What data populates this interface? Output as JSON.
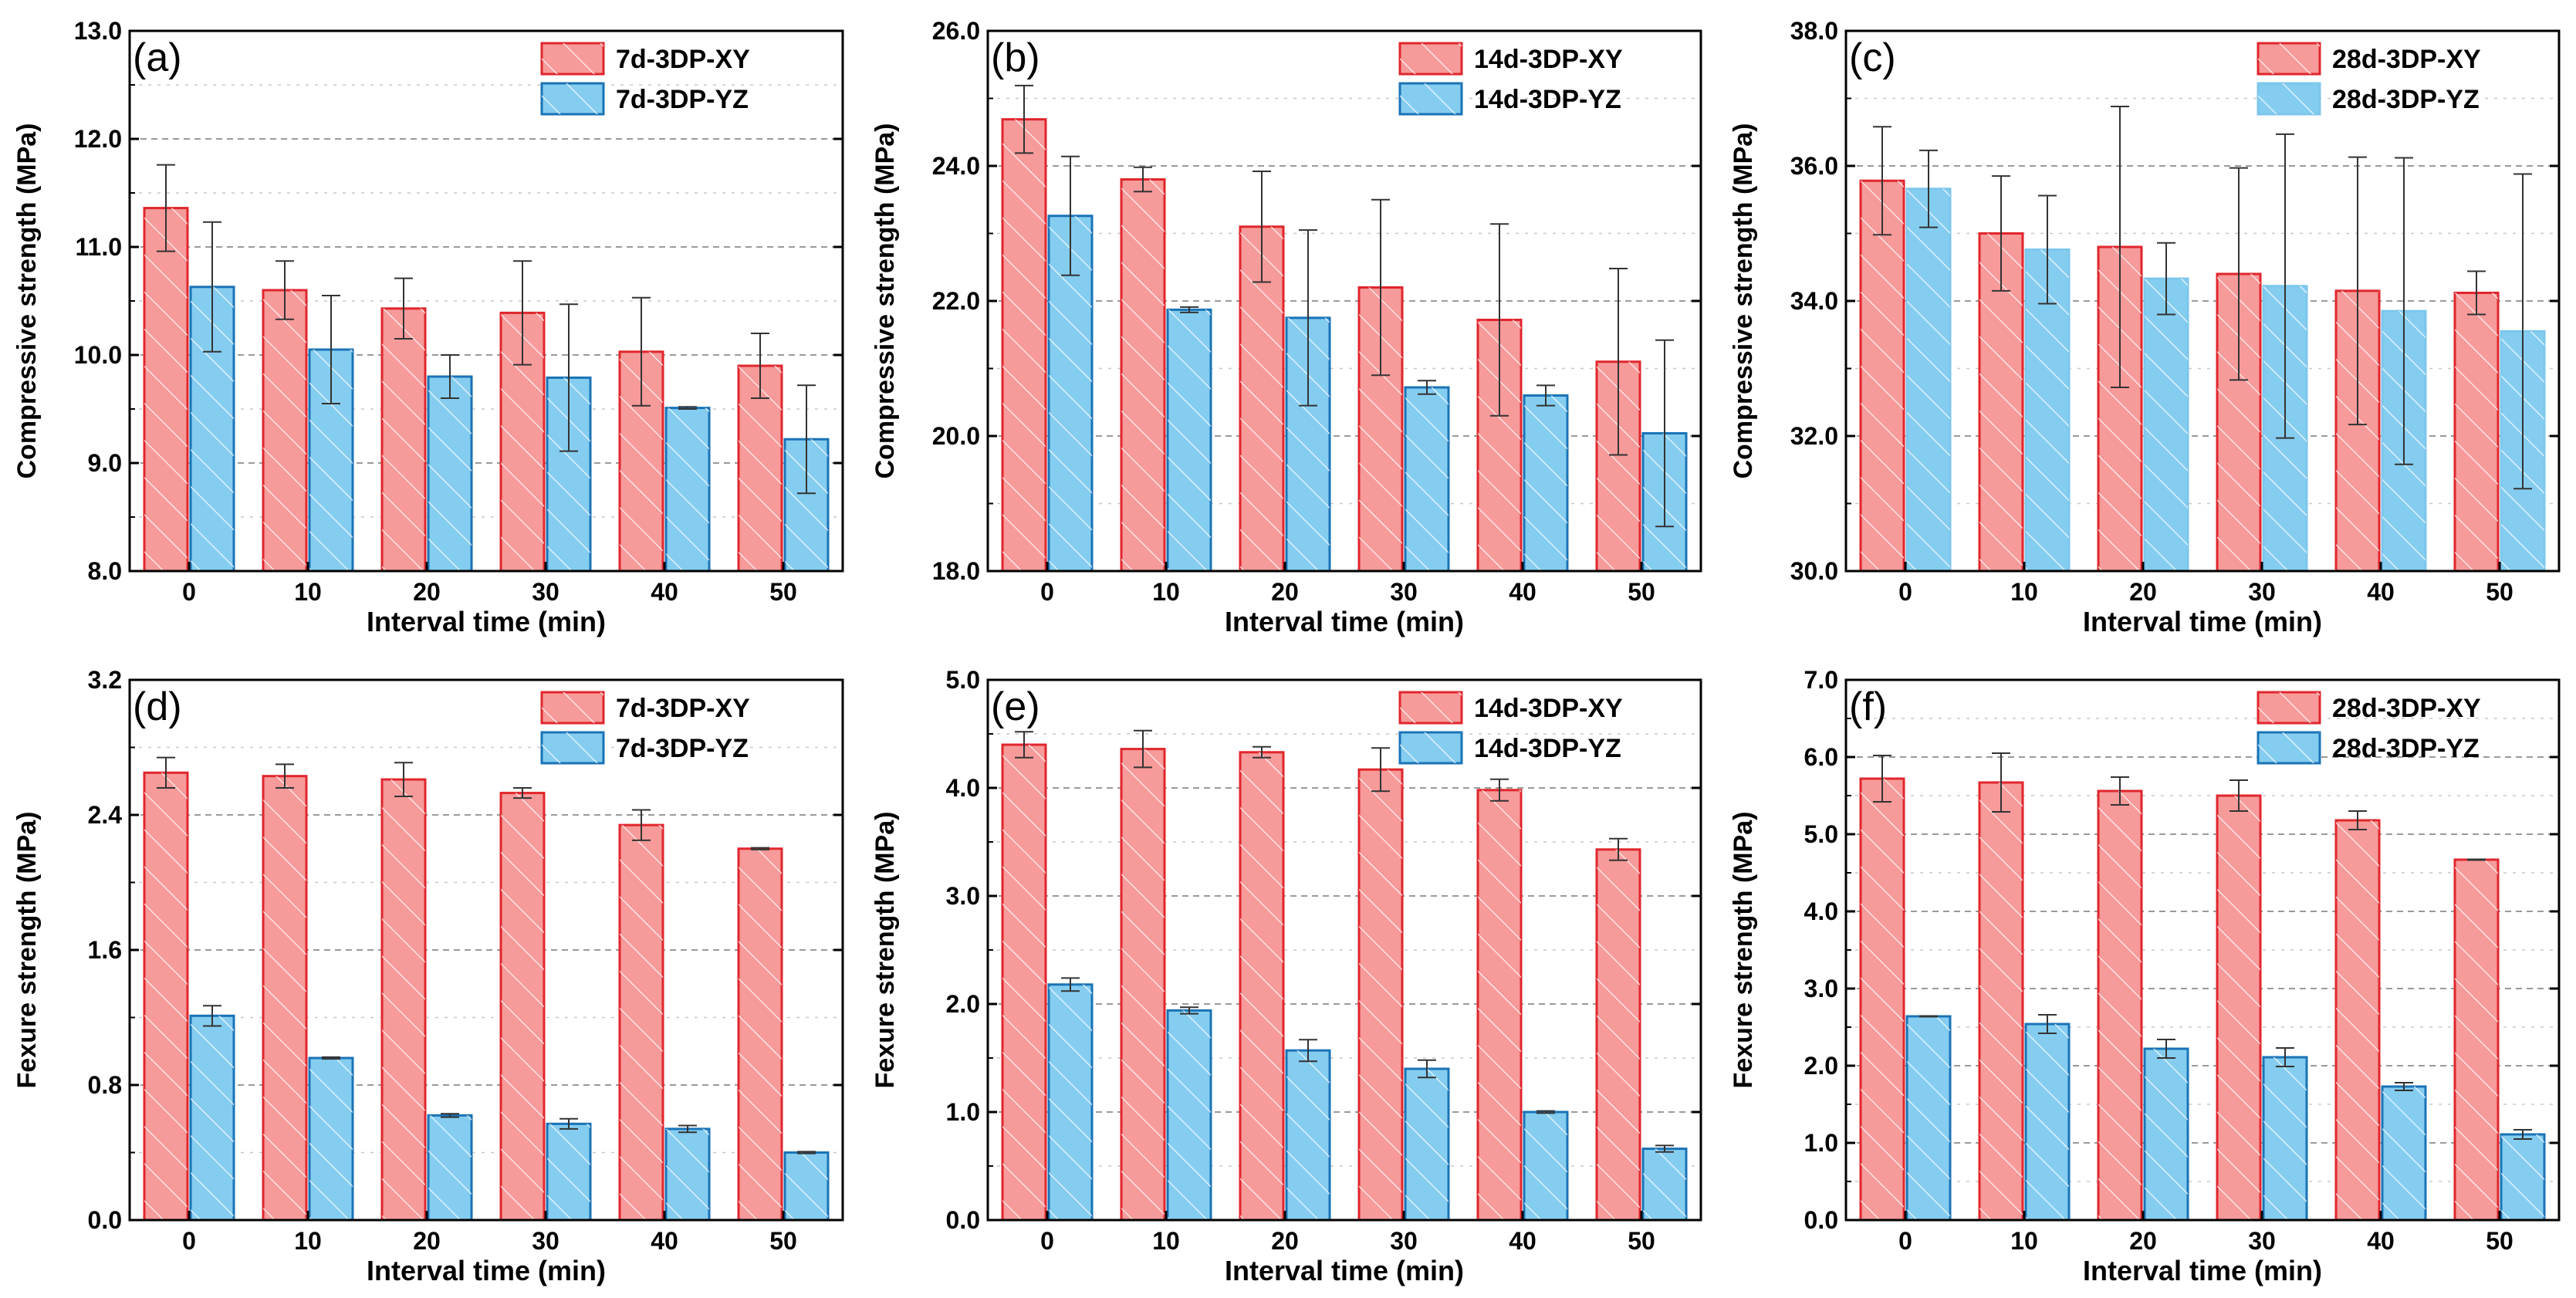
{
  "colors": {
    "xy_fill": "#f79a9a",
    "xy_edge": "#e0262c",
    "yz_fill": "#85cdf0",
    "yz_edge": "#1a73b6",
    "yz_edge_light": "#7cc6ec",
    "grid": "#9a9a9a"
  },
  "chart_data": [
    {
      "id": "a",
      "label": "(a)",
      "type": "bar",
      "title": "",
      "xlabel": "Interval time (min)",
      "ylabel": "Compressive strength (MPa)",
      "categories": [
        "0",
        "10",
        "20",
        "30",
        "40",
        "50"
      ],
      "ylim": [
        8.0,
        13.0
      ],
      "yticks": [
        8.0,
        9.0,
        10.0,
        11.0,
        12.0,
        13.0
      ],
      "ytick_labels": [
        "8.0",
        "9.0",
        "10.0",
        "11.0",
        "12.0",
        "13.0"
      ],
      "grid": true,
      "legend_position": "top-right",
      "series": [
        {
          "name": "7d-3DP-XY",
          "values": [
            11.36,
            10.6,
            10.43,
            10.39,
            10.03,
            9.9
          ],
          "errors": [
            0.4,
            0.27,
            0.28,
            0.48,
            0.5,
            0.3
          ]
        },
        {
          "name": "7d-3DP-YZ",
          "values": [
            10.63,
            10.05,
            9.8,
            9.79,
            9.51,
            9.22
          ],
          "errors": [
            0.6,
            0.5,
            0.2,
            0.68,
            0.01,
            0.5
          ]
        }
      ]
    },
    {
      "id": "b",
      "label": "(b)",
      "type": "bar",
      "title": "",
      "xlabel": "Interval time (min)",
      "ylabel": "Compressive strength (MPa)",
      "categories": [
        "0",
        "10",
        "20",
        "30",
        "40",
        "50"
      ],
      "ylim": [
        18.0,
        26.0
      ],
      "yticks": [
        18.0,
        20.0,
        22.0,
        24.0,
        26.0
      ],
      "ytick_labels": [
        "18.0",
        "20.0",
        "22.0",
        "24.0",
        "26.0"
      ],
      "grid": true,
      "legend_position": "top-right",
      "series": [
        {
          "name": "14d-3DP-XY",
          "values": [
            24.69,
            23.8,
            23.1,
            22.2,
            21.72,
            21.1
          ],
          "errors": [
            0.5,
            0.18,
            0.82,
            1.3,
            1.42,
            1.38
          ]
        },
        {
          "name": "14d-3DP-YZ",
          "values": [
            23.26,
            21.87,
            21.75,
            20.72,
            20.6,
            20.04
          ],
          "errors": [
            0.88,
            0.04,
            1.3,
            0.1,
            0.15,
            1.38
          ]
        }
      ]
    },
    {
      "id": "c",
      "label": "(c)",
      "type": "bar",
      "title": "",
      "xlabel": "Interval time (min)",
      "ylabel": "Compressive strength (MPa)",
      "categories": [
        "0",
        "10",
        "20",
        "30",
        "40",
        "50"
      ],
      "ylim": [
        30.0,
        38.0
      ],
      "yticks": [
        30.0,
        32.0,
        34.0,
        36.0,
        38.0
      ],
      "ytick_labels": [
        "30.0",
        "32.0",
        "34.0",
        "36.0",
        "38.0"
      ],
      "grid": true,
      "legend_position": "top-right",
      "series": [
        {
          "name": "28d-3DP-XY",
          "values": [
            35.78,
            35.0,
            34.8,
            34.4,
            34.15,
            34.12
          ],
          "errors": [
            0.8,
            0.85,
            2.08,
            1.57,
            1.98,
            0.32
          ]
        },
        {
          "name": "28d-3DP-YZ",
          "values": [
            35.66,
            34.76,
            34.33,
            34.22,
            33.85,
            33.55
          ],
          "errors": [
            0.57,
            0.8,
            0.53,
            2.25,
            2.27,
            2.33
          ]
        }
      ]
    },
    {
      "id": "d",
      "label": "(d)",
      "type": "bar",
      "title": "",
      "xlabel": "Interval time (min)",
      "ylabel": "Fexure strength (MPa)",
      "categories": [
        "0",
        "10",
        "20",
        "30",
        "40",
        "50"
      ],
      "ylim": [
        0.0,
        3.2
      ],
      "yticks": [
        0.0,
        0.8,
        1.6,
        2.4,
        3.2
      ],
      "ytick_labels": [
        "0.0",
        "0.8",
        "1.6",
        "2.4",
        "3.2"
      ],
      "grid": true,
      "legend_position": "top-right",
      "series": [
        {
          "name": "7d-3DP-XY",
          "values": [
            2.65,
            2.63,
            2.61,
            2.53,
            2.34,
            2.2
          ],
          "errors": [
            0.09,
            0.07,
            0.1,
            0.03,
            0.09,
            0.005
          ]
        },
        {
          "name": "7d-3DP-YZ",
          "values": [
            1.21,
            0.96,
            0.62,
            0.57,
            0.54,
            0.4
          ],
          "errors": [
            0.06,
            0.005,
            0.01,
            0.03,
            0.02,
            0.005
          ]
        }
      ]
    },
    {
      "id": "e",
      "label": "(e)",
      "type": "bar",
      "title": "",
      "xlabel": "Interval time (min)",
      "ylabel": "Fexure strength (MPa)",
      "categories": [
        "0",
        "10",
        "20",
        "30",
        "40",
        "50"
      ],
      "ylim": [
        0.0,
        5.0
      ],
      "yticks": [
        0.0,
        1.0,
        2.0,
        3.0,
        4.0,
        5.0
      ],
      "ytick_labels": [
        "0.0",
        "1.0",
        "2.0",
        "3.0",
        "4.0",
        "5.0"
      ],
      "grid": true,
      "legend_position": "top-right",
      "series": [
        {
          "name": "14d-3DP-XY",
          "values": [
            4.4,
            4.36,
            4.33,
            4.17,
            3.98,
            3.43
          ],
          "errors": [
            0.12,
            0.17,
            0.05,
            0.2,
            0.1,
            0.1
          ]
        },
        {
          "name": "14d-3DP-YZ",
          "values": [
            2.18,
            1.94,
            1.57,
            1.4,
            1.0,
            0.66
          ],
          "errors": [
            0.06,
            0.03,
            0.1,
            0.08,
            0.01,
            0.03
          ]
        }
      ]
    },
    {
      "id": "f",
      "label": "(f)",
      "type": "bar",
      "title": "",
      "xlabel": "Interval time (min)",
      "ylabel": "Fexure strength (MPa)",
      "categories": [
        "0",
        "10",
        "20",
        "30",
        "40",
        "50"
      ],
      "ylim": [
        0.0,
        7.0
      ],
      "yticks": [
        0.0,
        1.0,
        2.0,
        3.0,
        4.0,
        5.0,
        6.0,
        7.0
      ],
      "ytick_labels": [
        "0.0",
        "1.0",
        "2.0",
        "3.0",
        "4.0",
        "5.0",
        "6.0",
        "7.0"
      ],
      "grid": true,
      "legend_position": "top-right",
      "series": [
        {
          "name": "28d-3DP-XY",
          "values": [
            5.72,
            5.67,
            5.56,
            5.5,
            5.18,
            4.67
          ],
          "errors": [
            0.3,
            0.38,
            0.18,
            0.2,
            0.12,
            0.005
          ]
        },
        {
          "name": "28d-3DP-YZ",
          "values": [
            2.64,
            2.54,
            2.22,
            2.11,
            1.73,
            1.11
          ],
          "errors": [
            0.005,
            0.12,
            0.12,
            0.12,
            0.05,
            0.06
          ]
        }
      ]
    }
  ]
}
